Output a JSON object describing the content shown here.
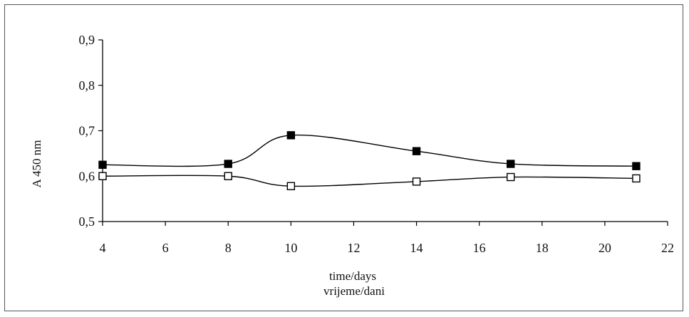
{
  "chart_data": {
    "type": "line",
    "title": "",
    "xlabel_line1": "time/days",
    "xlabel_line2": "vrijeme/dani",
    "ylabel": "A 450 nm",
    "xlim": [
      4,
      22
    ],
    "ylim": [
      0.5,
      0.9
    ],
    "xticks": [
      4,
      6,
      8,
      10,
      12,
      14,
      16,
      18,
      20,
      22
    ],
    "xtick_labels": [
      "4",
      "6",
      "8",
      "10",
      "12",
      "14",
      "16",
      "18",
      "20",
      "22"
    ],
    "yticks": [
      0.5,
      0.6,
      0.7,
      0.8,
      0.9
    ],
    "ytick_labels": [
      "0,5",
      "0,6",
      "0,7",
      "0,8",
      "0,9"
    ],
    "grid": false,
    "legend": "none",
    "series": [
      {
        "marker": "filled-square",
        "color": "#000000",
        "x": [
          4,
          8,
          10,
          14,
          17,
          21
        ],
        "y": [
          0.625,
          0.627,
          0.69,
          0.655,
          0.627,
          0.622
        ]
      },
      {
        "marker": "open-square",
        "color": "#000000",
        "x": [
          4,
          8,
          10,
          14,
          17,
          21
        ],
        "y": [
          0.6,
          0.6,
          0.578,
          0.588,
          0.598,
          0.595
        ]
      }
    ]
  }
}
